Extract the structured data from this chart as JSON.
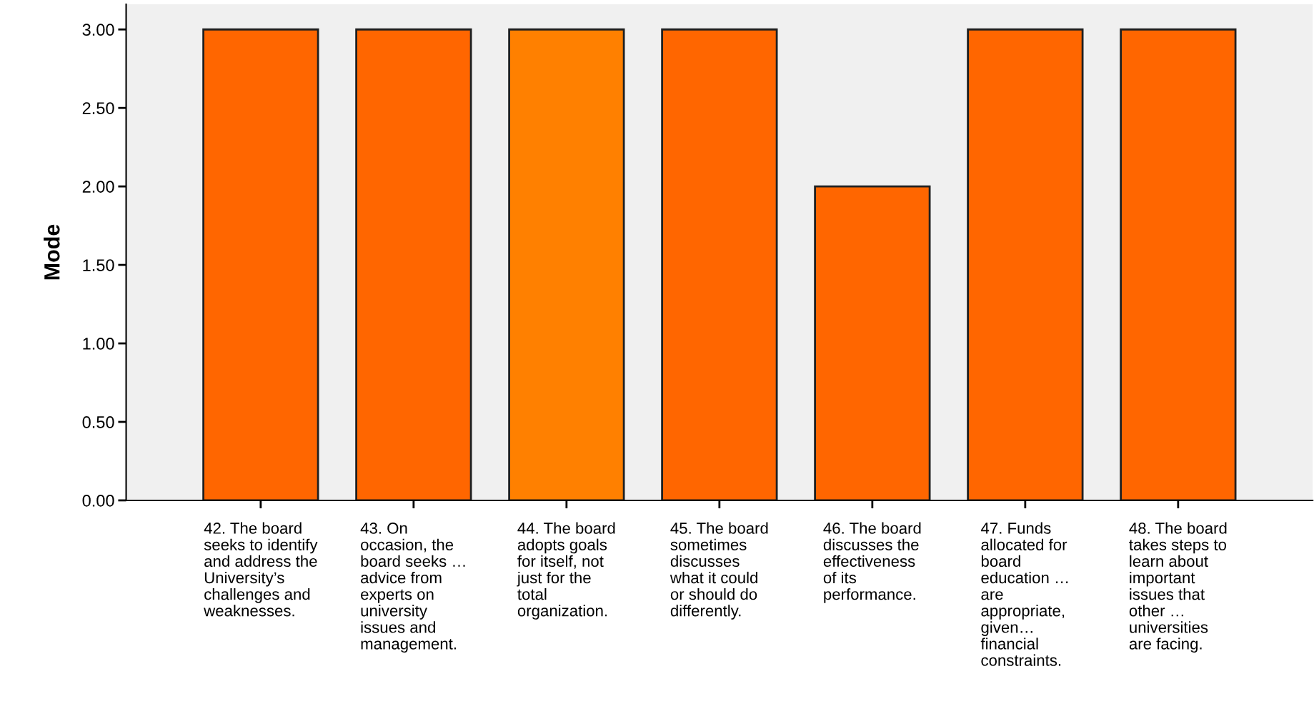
{
  "chart_data": {
    "type": "bar",
    "ylabel": "Mode",
    "categories": [
      "42. The board\nseeks to identify\nand address the\nUniversity’s\nchallenges and\nweaknesses.",
      "43. On\noccasion, the\nboard seeks …\nadvice from\nexperts on\nuniversity\nissues and\nmanagement.",
      "44. The board\nadopts goals\nfor itself, not\njust for the\ntotal\norganization.",
      "45. The board\nsometimes\ndiscusses\nwhat it could\nor should do\ndifferently.",
      "46. The board\ndiscusses the\neffectiveness\nof its\nperformance.",
      "47. Funds\nallocated for\nboard\neducation …\nare\nappropriate,\ngiven…\nfinancial\nconstraints.",
      "48. The board\ntakes steps to\nlearn about\nimportant\nissues that\nother …\nuniversities\nare facing."
    ],
    "values": [
      3,
      3,
      3,
      3,
      2,
      3,
      3
    ],
    "colors": [
      "#ff6600",
      "#ff6600",
      "#ff8000",
      "#ff6600",
      "#ff6600",
      "#ff6600",
      "#ff6600"
    ],
    "ylim": [
      0,
      3.16
    ],
    "yticks": [
      {
        "value": 0,
        "label": "0.00"
      },
      {
        "value": 0.5,
        "label": "0.50"
      },
      {
        "value": 1,
        "label": "1.00"
      },
      {
        "value": 1.5,
        "label": "1.50"
      },
      {
        "value": 2,
        "label": "2.00"
      },
      {
        "value": 2.5,
        "label": "2.50"
      },
      {
        "value": 3,
        "label": "3.00"
      }
    ],
    "grid": false
  }
}
